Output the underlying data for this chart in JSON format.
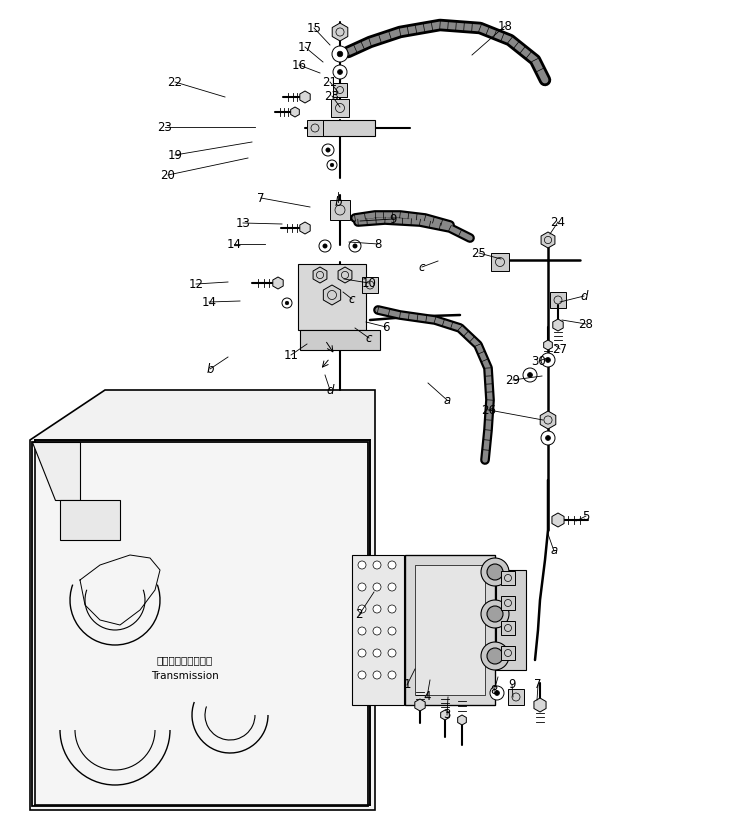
{
  "bg": "#ffffff",
  "lc": "#000000",
  "fig_w": 7.37,
  "fig_h": 8.34,
  "dpi": 100,
  "trans_jp": "トランスミッション",
  "trans_en": "Transmission",
  "labels": [
    [
      "15",
      314,
      28,
      330,
      45,
      "n"
    ],
    [
      "17",
      305,
      47,
      323,
      62,
      "n"
    ],
    [
      "16",
      299,
      65,
      320,
      73,
      "n"
    ],
    [
      "21",
      330,
      82,
      338,
      92,
      "n"
    ],
    [
      "23",
      332,
      96,
      340,
      107,
      "n"
    ],
    [
      "22",
      175,
      82,
      225,
      97,
      "n"
    ],
    [
      "23",
      165,
      127,
      255,
      127,
      "n"
    ],
    [
      "19",
      175,
      155,
      252,
      142,
      "n"
    ],
    [
      "20",
      168,
      175,
      248,
      158,
      "n"
    ],
    [
      "b",
      338,
      202,
      338,
      192,
      "i"
    ],
    [
      "7",
      261,
      198,
      310,
      207,
      "n"
    ],
    [
      "13",
      243,
      223,
      282,
      224,
      "n"
    ],
    [
      "9",
      393,
      219,
      360,
      221,
      "n"
    ],
    [
      "14",
      234,
      244,
      265,
      244,
      "n"
    ],
    [
      "8",
      378,
      244,
      349,
      242,
      "n"
    ],
    [
      "12",
      196,
      284,
      228,
      282,
      "n"
    ],
    [
      "14",
      209,
      302,
      240,
      301,
      "n"
    ],
    [
      "10",
      369,
      283,
      344,
      279,
      "n"
    ],
    [
      "c",
      352,
      299,
      343,
      292,
      "i"
    ],
    [
      "11",
      291,
      355,
      307,
      344,
      "n"
    ],
    [
      "b",
      210,
      369,
      228,
      357,
      "i"
    ],
    [
      "d",
      330,
      390,
      325,
      375,
      "i"
    ],
    [
      "6",
      386,
      327,
      366,
      322,
      "n"
    ],
    [
      "c",
      369,
      338,
      355,
      328,
      "i"
    ],
    [
      "a",
      447,
      400,
      428,
      383,
      "i"
    ],
    [
      "18",
      505,
      26,
      472,
      55,
      "n"
    ],
    [
      "24",
      558,
      222,
      550,
      234,
      "n"
    ],
    [
      "25",
      479,
      253,
      501,
      259,
      "n"
    ],
    [
      "c",
      422,
      267,
      438,
      261,
      "i"
    ],
    [
      "d",
      584,
      296,
      560,
      302,
      "i"
    ],
    [
      "28",
      586,
      324,
      562,
      320,
      "n"
    ],
    [
      "27",
      560,
      349,
      555,
      345,
      "n"
    ],
    [
      "30",
      539,
      361,
      547,
      358,
      "n"
    ],
    [
      "29",
      513,
      380,
      542,
      376,
      "n"
    ],
    [
      "26",
      489,
      410,
      543,
      420,
      "n"
    ],
    [
      "5",
      586,
      516,
      576,
      521,
      "n"
    ],
    [
      "a",
      554,
      551,
      548,
      534,
      "i"
    ],
    [
      "2",
      359,
      615,
      374,
      592,
      "n"
    ],
    [
      "1",
      407,
      685,
      415,
      669,
      "n"
    ],
    [
      "4",
      427,
      697,
      430,
      680,
      "n"
    ],
    [
      "3",
      447,
      715,
      448,
      697,
      "n"
    ],
    [
      "8",
      494,
      691,
      498,
      677,
      "n"
    ],
    [
      "9",
      512,
      685,
      513,
      697,
      "n"
    ],
    [
      "7",
      538,
      685,
      537,
      700,
      "n"
    ]
  ]
}
